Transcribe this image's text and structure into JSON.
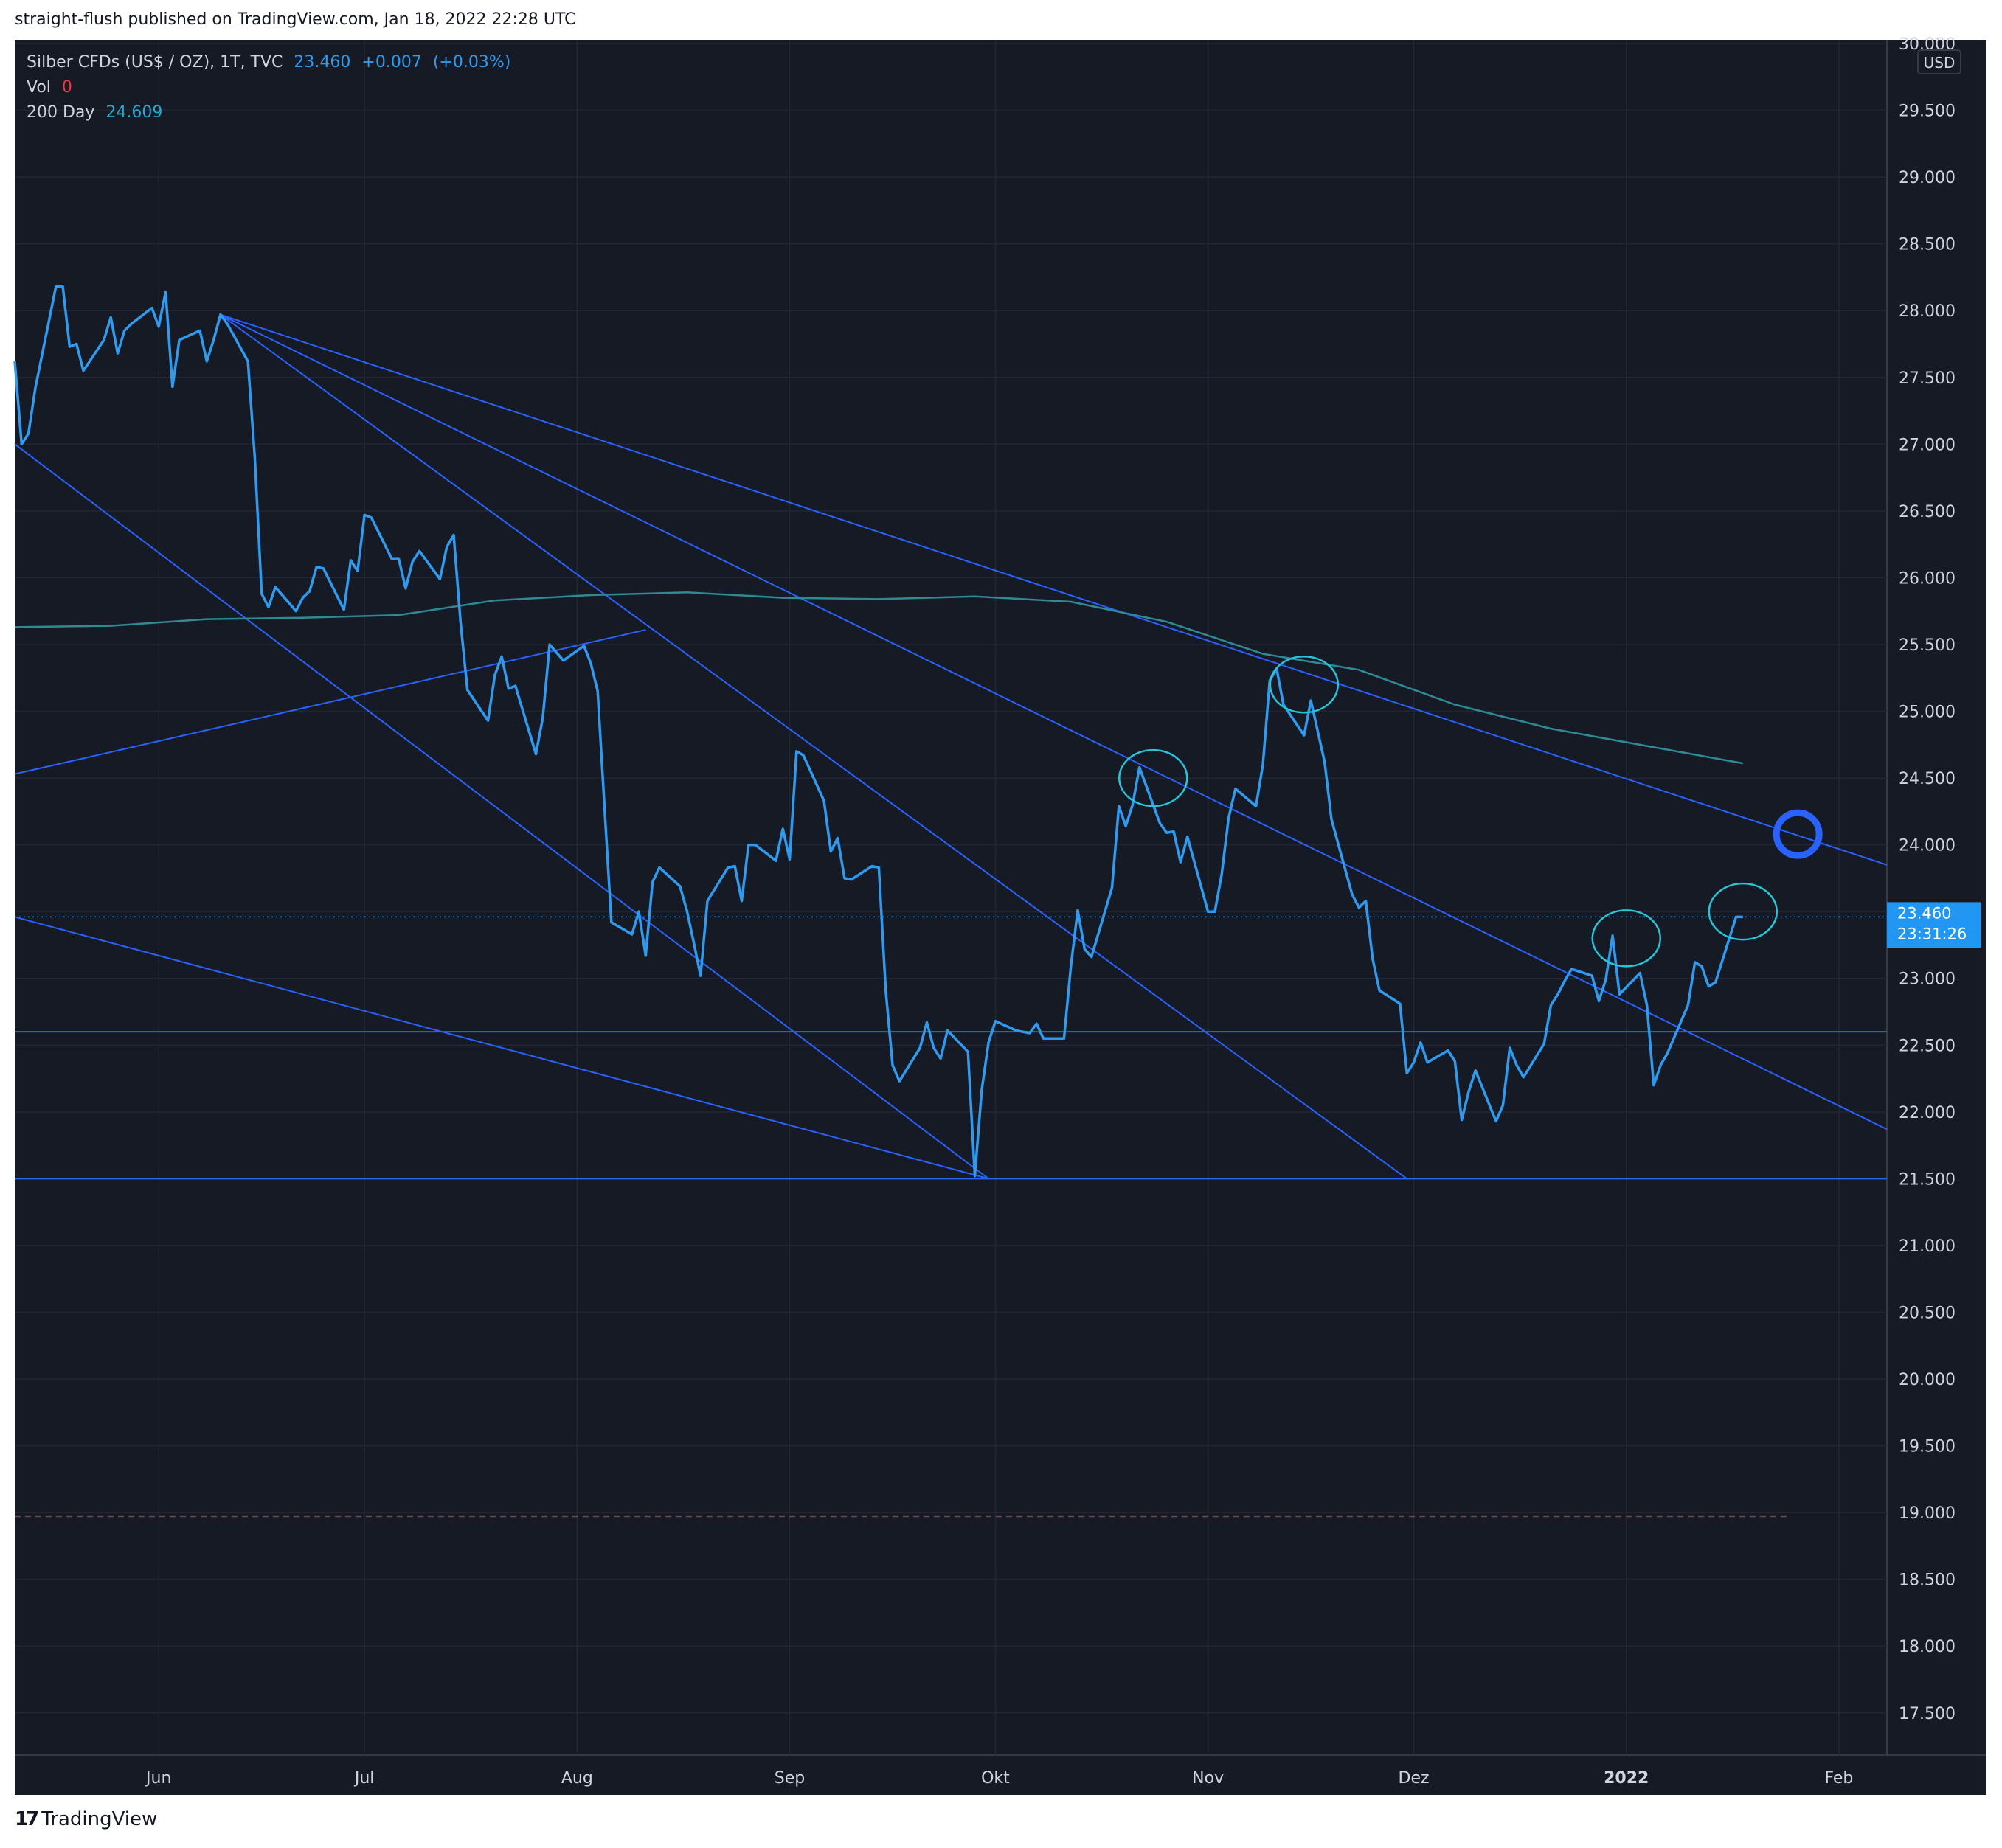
{
  "header": {
    "publish_text": "straight-flush published on TradingView.com, Jan 18, 2022 22:28 UTC"
  },
  "legend": {
    "symbol": "Silber CFDs (US$ / OZ), 1T, TVC",
    "last": "23.460",
    "change": "+0.007",
    "change_pct": "(+0.03%)",
    "vol_label": "Vol",
    "vol_value": "0",
    "ma_label": "200 Day",
    "ma_value": "24.609"
  },
  "price_axis": {
    "currency": "USD",
    "last_price_label": "23.460",
    "countdown_label": "23:31:26"
  },
  "footer": {
    "brand": "TradingView"
  },
  "colors": {
    "background": "#161a25",
    "price_line": "#2f9bf0",
    "ma_line": "#2e8b95",
    "trend_lines": "#2962ff",
    "marker_circle": "#2962ff",
    "annotation": "#26c6da",
    "price_tag": "#2196f3"
  },
  "chart_data": {
    "type": "line",
    "title": "Silber CFDs (US$ / OZ), 1T, TVC",
    "ylim": [
      17.3,
      30.0
    ],
    "y_ticks": [
      "30.000",
      "29.500",
      "29.000",
      "28.500",
      "28.000",
      "27.500",
      "27.000",
      "26.500",
      "26.000",
      "25.500",
      "25.000",
      "24.500",
      "24.000",
      "23.500",
      "23.000",
      "22.500",
      "22.000",
      "21.500",
      "21.000",
      "20.500",
      "20.000",
      "19.500",
      "19.000",
      "18.500",
      "18.000",
      "17.500"
    ],
    "x_tick_labels": [
      "Jun",
      "Jul",
      "Aug",
      "Sep",
      "Okt",
      "Nov",
      "Dez",
      "2022",
      "Feb"
    ],
    "x_tick_dates": [
      "2021-06-01",
      "2021-07-01",
      "2021-08-01",
      "2021-09-01",
      "2021-10-01",
      "2021-11-01",
      "2021-12-01",
      "2022-01-01",
      "2022-02-01"
    ],
    "xlim": [
      "2021-05-11",
      "2022-02-08"
    ],
    "grid": true,
    "series": [
      {
        "name": "Silber CFDs (US$ / OZ), 1T, TVC",
        "dates": [
          "2021-05-11",
          "2021-05-12",
          "2021-05-13",
          "2021-05-14",
          "2021-05-17",
          "2021-05-18",
          "2021-05-19",
          "2021-05-20",
          "2021-05-21",
          "2021-05-24",
          "2021-05-25",
          "2021-05-26",
          "2021-05-27",
          "2021-05-28",
          "2021-05-31",
          "2021-06-01",
          "2021-06-02",
          "2021-06-03",
          "2021-06-04",
          "2021-06-07",
          "2021-06-08",
          "2021-06-09",
          "2021-06-10",
          "2021-06-11",
          "2021-06-14",
          "2021-06-15",
          "2021-06-16",
          "2021-06-17",
          "2021-06-18",
          "2021-06-21",
          "2021-06-22",
          "2021-06-23",
          "2021-06-24",
          "2021-06-25",
          "2021-06-28",
          "2021-06-29",
          "2021-06-30",
          "2021-07-01",
          "2021-07-02",
          "2021-07-05",
          "2021-07-06",
          "2021-07-07",
          "2021-07-08",
          "2021-07-09",
          "2021-07-12",
          "2021-07-13",
          "2021-07-14",
          "2021-07-15",
          "2021-07-16",
          "2021-07-19",
          "2021-07-20",
          "2021-07-21",
          "2021-07-22",
          "2021-07-23",
          "2021-07-26",
          "2021-07-27",
          "2021-07-28",
          "2021-07-29",
          "2021-07-30",
          "2021-08-02",
          "2021-08-03",
          "2021-08-04",
          "2021-08-05",
          "2021-08-06",
          "2021-08-09",
          "2021-08-10",
          "2021-08-11",
          "2021-08-12",
          "2021-08-13",
          "2021-08-16",
          "2021-08-17",
          "2021-08-18",
          "2021-08-19",
          "2021-08-20",
          "2021-08-23",
          "2021-08-24",
          "2021-08-25",
          "2021-08-26",
          "2021-08-27",
          "2021-08-30",
          "2021-08-31",
          "2021-09-01",
          "2021-09-02",
          "2021-09-03",
          "2021-09-06",
          "2021-09-07",
          "2021-09-08",
          "2021-09-09",
          "2021-09-10",
          "2021-09-13",
          "2021-09-14",
          "2021-09-15",
          "2021-09-16",
          "2021-09-17",
          "2021-09-20",
          "2021-09-21",
          "2021-09-22",
          "2021-09-23",
          "2021-09-24",
          "2021-09-27",
          "2021-09-28",
          "2021-09-29",
          "2021-09-30",
          "2021-10-01",
          "2021-10-04",
          "2021-10-05",
          "2021-10-06",
          "2021-10-07",
          "2021-10-08",
          "2021-10-11",
          "2021-10-12",
          "2021-10-13",
          "2021-10-14",
          "2021-10-15",
          "2021-10-18",
          "2021-10-19",
          "2021-10-20",
          "2021-10-21",
          "2021-10-22",
          "2021-10-25",
          "2021-10-26",
          "2021-10-27",
          "2021-10-28",
          "2021-10-29",
          "2021-11-01",
          "2021-11-02",
          "2021-11-03",
          "2021-11-04",
          "2021-11-05",
          "2021-11-08",
          "2021-11-09",
          "2021-11-10",
          "2021-11-11",
          "2021-11-12",
          "2021-11-15",
          "2021-11-16",
          "2021-11-17",
          "2021-11-18",
          "2021-11-19",
          "2021-11-22",
          "2021-11-23",
          "2021-11-24",
          "2021-11-25",
          "2021-11-26",
          "2021-11-29",
          "2021-11-30",
          "2021-12-01",
          "2021-12-02",
          "2021-12-03",
          "2021-12-06",
          "2021-12-07",
          "2021-12-08",
          "2021-12-09",
          "2021-12-10",
          "2021-12-13",
          "2021-12-14",
          "2021-12-15",
          "2021-12-16",
          "2021-12-17",
          "2021-12-20",
          "2021-12-21",
          "2021-12-22",
          "2021-12-23",
          "2021-12-24",
          "2021-12-27",
          "2021-12-28",
          "2021-12-29",
          "2021-12-30",
          "2021-12-31",
          "2022-01-03",
          "2022-01-04",
          "2022-01-05",
          "2022-01-06",
          "2022-01-07",
          "2022-01-10",
          "2022-01-11",
          "2022-01-12",
          "2022-01-13",
          "2022-01-14",
          "2022-01-17",
          "2022-01-18"
        ],
        "values": [
          27.62,
          27.0,
          27.08,
          27.42,
          28.18,
          28.18,
          27.73,
          27.75,
          27.55,
          27.78,
          27.95,
          27.68,
          27.85,
          27.9,
          28.02,
          27.88,
          28.14,
          27.43,
          27.78,
          27.85,
          27.62,
          27.78,
          27.97,
          27.9,
          27.62,
          26.9,
          25.88,
          25.78,
          25.93,
          25.75,
          25.85,
          25.9,
          26.08,
          26.07,
          25.76,
          26.13,
          26.05,
          26.47,
          26.45,
          26.14,
          26.14,
          25.92,
          26.12,
          26.2,
          25.99,
          26.23,
          26.32,
          25.67,
          25.16,
          24.93,
          25.27,
          25.41,
          25.17,
          25.19,
          24.68,
          24.95,
          25.5,
          25.44,
          25.38,
          25.49,
          25.36,
          25.15,
          24.28,
          23.42,
          23.33,
          23.5,
          23.17,
          23.72,
          23.83,
          23.69,
          23.51,
          23.27,
          23.02,
          23.58,
          23.83,
          23.84,
          23.58,
          24.0,
          24.0,
          23.88,
          24.12,
          23.89,
          24.7,
          24.67,
          24.33,
          23.95,
          24.05,
          23.75,
          23.74,
          23.84,
          23.83,
          22.91,
          22.35,
          22.23,
          22.48,
          22.67,
          22.48,
          22.4,
          22.61,
          22.45,
          21.52,
          22.16,
          22.52,
          22.68,
          22.61,
          22.6,
          22.59,
          22.66,
          22.55,
          22.55,
          23.09,
          23.51,
          23.22,
          23.16,
          23.68,
          24.29,
          24.14,
          24.3,
          24.58,
          24.16,
          24.09,
          24.1,
          23.87,
          24.06,
          23.5,
          23.5,
          23.78,
          24.2,
          24.42,
          24.29,
          24.6,
          25.23,
          25.32,
          25.05,
          24.82,
          25.08,
          24.85,
          24.62,
          24.19,
          23.63,
          23.53,
          23.58,
          23.15,
          22.91,
          22.81,
          22.29,
          22.37,
          22.52,
          22.37,
          22.46,
          22.38,
          21.94,
          22.15,
          22.31,
          21.93,
          22.05,
          22.48,
          22.35,
          22.26,
          22.51,
          22.8,
          22.88,
          22.98,
          23.07,
          23.02,
          22.83,
          22.99,
          23.32,
          22.88,
          23.04,
          22.8,
          22.2,
          22.35,
          22.44,
          22.8,
          23.12,
          23.09,
          22.94,
          22.97,
          23.46,
          23.46
        ]
      },
      {
        "name": "200 Day",
        "dates": [
          "2021-05-11",
          "2021-05-25",
          "2021-06-08",
          "2021-06-22",
          "2021-07-06",
          "2021-07-20",
          "2021-08-03",
          "2021-08-17",
          "2021-08-31",
          "2021-09-14",
          "2021-09-28",
          "2021-10-12",
          "2021-10-26",
          "2021-11-09",
          "2021-11-23",
          "2021-12-07",
          "2021-12-21",
          "2022-01-04",
          "2022-01-18"
        ],
        "values": [
          25.63,
          25.64,
          25.69,
          25.7,
          25.72,
          25.83,
          25.87,
          25.89,
          25.85,
          25.84,
          25.86,
          25.82,
          25.67,
          25.43,
          25.31,
          25.05,
          24.87,
          24.74,
          24.61
        ]
      }
    ],
    "trend_lines": [
      {
        "from": [
          "2021-06-10",
          27.97
        ],
        "to": [
          "2022-02-08",
          23.85
        ]
      },
      {
        "from": [
          "2021-06-10",
          27.97
        ],
        "to": [
          "2022-02-08",
          21.87
        ]
      },
      {
        "from": [
          "2021-06-10",
          27.97
        ],
        "to": [
          "2021-11-30",
          21.5
        ]
      },
      {
        "from": [
          "2021-05-11",
          27.0
        ],
        "to": [
          "2021-09-30",
          21.5
        ]
      },
      {
        "from": [
          "2021-05-11",
          23.46
        ],
        "to": [
          "2021-09-30",
          21.5
        ]
      },
      {
        "from": [
          "2021-05-11",
          24.53
        ],
        "to": [
          "2021-08-11",
          25.61
        ]
      }
    ],
    "horizontal_lines": [
      22.6,
      21.5
    ],
    "last_price_line": 23.46,
    "dashed_line": 18.97,
    "marker_circle": {
      "date": "2022-01-26",
      "value": 24.08
    },
    "annotations": [
      {
        "date": "2021-10-24",
        "value": 24.5
      },
      {
        "date": "2021-11-15",
        "value": 25.2
      },
      {
        "date": "2022-01-01",
        "value": 23.3
      },
      {
        "date": "2022-01-18",
        "value": 23.5
      }
    ]
  }
}
